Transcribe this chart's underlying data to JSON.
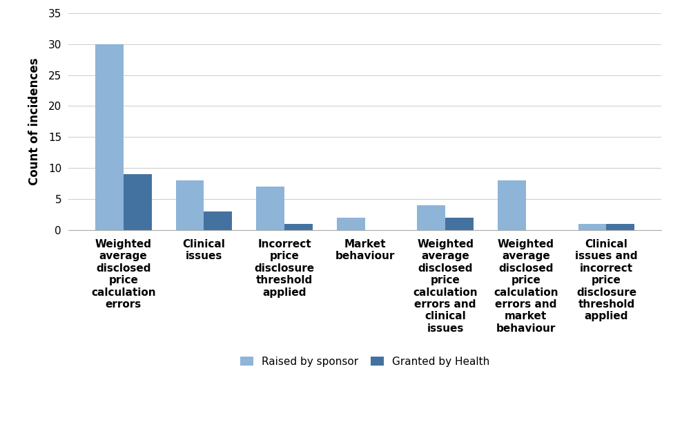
{
  "categories": [
    "Weighted\naverage\ndisclosed\nprice\ncalculation\nerrors",
    "Clinical\nissues",
    "Incorrect\nprice\ndisclosure\nthreshold\napplied",
    "Market\nbehaviour",
    "Weighted\naverage\ndisclosed\nprice\ncalculation\nerrors and\nclinical\nissues",
    "Weighted\naverage\ndisclosed\nprice\ncalculation\nerrors and\nmarket\nbehaviour",
    "Clinical\nissues and\nincorrect\nprice\ndisclosure\nthreshold\napplied"
  ],
  "raised_by_sponsor": [
    30,
    8,
    7,
    2,
    4,
    8,
    1
  ],
  "granted_by_health": [
    9,
    3,
    1,
    0,
    2,
    0,
    1
  ],
  "color_raised": "#8EB4D8",
  "color_granted": "#4472A0",
  "ylabel": "Count of incidences",
  "ylim": [
    0,
    35
  ],
  "yticks": [
    0,
    5,
    10,
    15,
    20,
    25,
    30,
    35
  ],
  "legend_raised": "Raised by sponsor",
  "legend_granted": "Granted by Health",
  "bar_width": 0.35,
  "background_color": "#FFFFFF",
  "grid_color": "#D0D0D0",
  "label_fontsize": 12,
  "tick_fontsize": 11,
  "legend_fontsize": 11
}
